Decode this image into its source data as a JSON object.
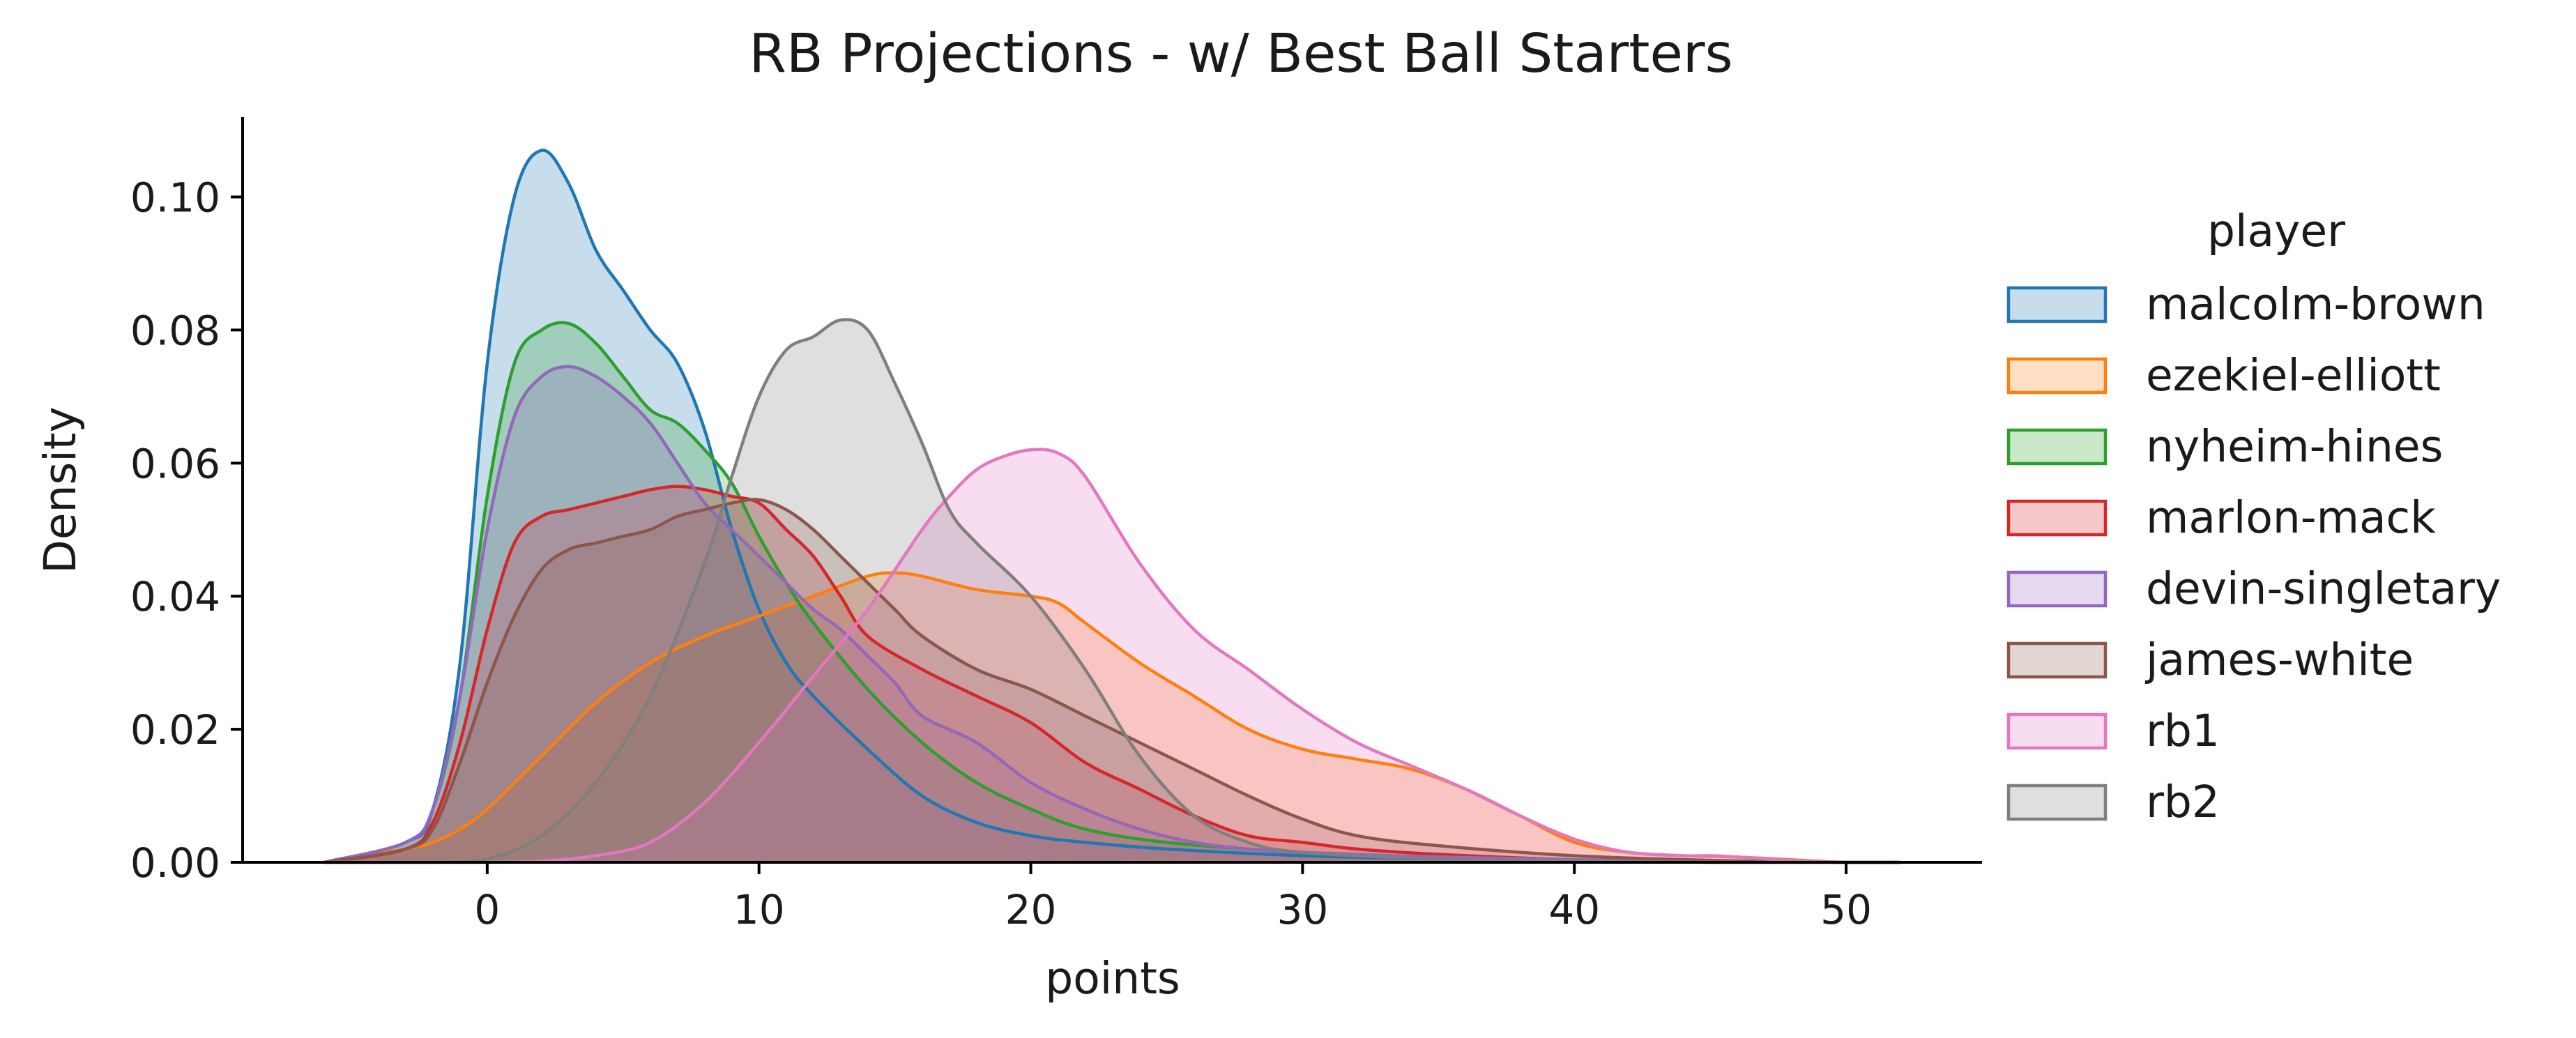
{
  "chart_data": {
    "type": "area",
    "title": "RB Projections - w/ Best Ball Starters",
    "xlabel": "points",
    "ylabel": "Density",
    "xlim": [
      -9,
      55
    ],
    "ylim": [
      0,
      0.112
    ],
    "xticks": [
      0,
      10,
      20,
      30,
      40,
      50
    ],
    "yticks": [
      0,
      0.02,
      0.04,
      0.06,
      0.08,
      0.1
    ],
    "xtick_labels": [
      "0",
      "10",
      "20",
      "30",
      "40",
      "50"
    ],
    "ytick_labels": [
      "0.00",
      "0.02",
      "0.04",
      "0.06",
      "0.08",
      "0.10"
    ],
    "grid": false,
    "legend": {
      "title": "player",
      "placement": "right-outside"
    },
    "series": [
      {
        "name": "malcolm-brown",
        "color": "#1f77b4",
        "x": [
          -6,
          -3,
          -2,
          -1,
          0,
          1,
          2,
          3,
          4,
          5,
          6,
          7,
          8,
          9,
          10,
          11,
          12,
          14,
          16,
          18,
          20,
          22,
          25,
          30,
          35,
          40,
          45,
          50,
          52
        ],
        "y": [
          0,
          0.003,
          0.008,
          0.03,
          0.075,
          0.1,
          0.107,
          0.102,
          0.092,
          0.086,
          0.08,
          0.075,
          0.065,
          0.05,
          0.038,
          0.03,
          0.025,
          0.017,
          0.01,
          0.006,
          0.004,
          0.003,
          0.002,
          0.001,
          0.0005,
          0.0003,
          0.0002,
          0,
          0
        ]
      },
      {
        "name": "ezekiel-elliott",
        "color": "#ff7f0e",
        "x": [
          -6,
          -3,
          -2,
          -1,
          0,
          2,
          4,
          6,
          8,
          10,
          12,
          14,
          15,
          16,
          18,
          20,
          21,
          22,
          24,
          26,
          28,
          30,
          32,
          34,
          36,
          38,
          40,
          42,
          44,
          46,
          50,
          52
        ],
        "y": [
          0,
          0.002,
          0.003,
          0.005,
          0.008,
          0.016,
          0.024,
          0.03,
          0.034,
          0.037,
          0.04,
          0.043,
          0.0435,
          0.043,
          0.041,
          0.04,
          0.039,
          0.036,
          0.03,
          0.025,
          0.02,
          0.017,
          0.0155,
          0.014,
          0.011,
          0.007,
          0.003,
          0.0015,
          0.001,
          0.0008,
          0,
          0
        ]
      },
      {
        "name": "nyheim-hines",
        "color": "#2ca02c",
        "x": [
          -6,
          -3,
          -2,
          -1,
          0,
          1,
          2,
          3,
          4,
          5,
          6,
          7,
          8,
          9,
          10,
          11,
          12,
          14,
          16,
          18,
          20,
          22,
          25,
          30,
          35,
          40,
          45,
          50,
          52
        ],
        "y": [
          0,
          0.003,
          0.008,
          0.025,
          0.055,
          0.075,
          0.08,
          0.081,
          0.078,
          0.073,
          0.068,
          0.066,
          0.062,
          0.057,
          0.049,
          0.042,
          0.036,
          0.026,
          0.018,
          0.012,
          0.008,
          0.005,
          0.003,
          0.0015,
          0.0007,
          0.0003,
          0.0002,
          0,
          0
        ]
      },
      {
        "name": "marlon-mack",
        "color": "#d62728",
        "x": [
          -6,
          -3,
          -2,
          -1,
          0,
          1,
          2,
          3,
          4,
          5,
          6,
          7,
          8,
          9,
          10,
          11,
          12,
          13,
          14,
          16,
          18,
          20,
          22,
          24,
          26,
          28,
          30,
          32,
          35,
          40,
          45,
          50,
          52
        ],
        "y": [
          0,
          0.002,
          0.006,
          0.018,
          0.035,
          0.048,
          0.052,
          0.053,
          0.054,
          0.055,
          0.056,
          0.0565,
          0.056,
          0.055,
          0.054,
          0.05,
          0.046,
          0.04,
          0.034,
          0.029,
          0.025,
          0.021,
          0.015,
          0.011,
          0.007,
          0.004,
          0.003,
          0.002,
          0.0012,
          0.0004,
          0.0002,
          0,
          0
        ]
      },
      {
        "name": "devin-singletary",
        "color": "#9467bd",
        "x": [
          -6,
          -3,
          -2,
          -1,
          0,
          1,
          2,
          3,
          4,
          5,
          6,
          7,
          8,
          9,
          10,
          11,
          12,
          13,
          14,
          15,
          16,
          18,
          20,
          22,
          24,
          26,
          28,
          30,
          35,
          40,
          45,
          50,
          52
        ],
        "y": [
          0,
          0.003,
          0.008,
          0.025,
          0.05,
          0.067,
          0.073,
          0.0745,
          0.073,
          0.07,
          0.066,
          0.06,
          0.054,
          0.05,
          0.046,
          0.042,
          0.038,
          0.035,
          0.031,
          0.027,
          0.022,
          0.018,
          0.012,
          0.008,
          0.005,
          0.003,
          0.002,
          0.0015,
          0.0008,
          0.0004,
          0.0002,
          0,
          0
        ]
      },
      {
        "name": "james-white",
        "color": "#8c564b",
        "x": [
          -6,
          -3,
          -2,
          -1,
          0,
          1,
          2,
          3,
          4,
          5,
          6,
          7,
          8,
          9,
          10,
          11,
          12,
          13,
          14,
          15,
          16,
          18,
          20,
          22,
          24,
          26,
          28,
          30,
          32,
          35,
          40,
          45,
          50,
          52
        ],
        "y": [
          0,
          0.002,
          0.005,
          0.015,
          0.027,
          0.037,
          0.044,
          0.047,
          0.048,
          0.049,
          0.05,
          0.052,
          0.053,
          0.054,
          0.0545,
          0.053,
          0.05,
          0.046,
          0.042,
          0.038,
          0.034,
          0.029,
          0.026,
          0.022,
          0.018,
          0.014,
          0.01,
          0.0065,
          0.004,
          0.0025,
          0.001,
          0.0003,
          0,
          0
        ]
      },
      {
        "name": "rb1",
        "color": "#e377c2",
        "x": [
          -6,
          0,
          2,
          4,
          6,
          8,
          10,
          12,
          14,
          16,
          17,
          18,
          19,
          20,
          21,
          22,
          24,
          26,
          28,
          30,
          32,
          34,
          36,
          38,
          40,
          42,
          44,
          45,
          46,
          48,
          50,
          52
        ],
        "y": [
          0,
          0,
          0.0002,
          0.001,
          0.003,
          0.009,
          0.018,
          0.028,
          0.038,
          0.05,
          0.055,
          0.059,
          0.061,
          0.062,
          0.0615,
          0.058,
          0.045,
          0.035,
          0.029,
          0.023,
          0.018,
          0.0145,
          0.011,
          0.007,
          0.0035,
          0.0015,
          0.001,
          0.001,
          0.0008,
          0.0003,
          0,
          0
        ]
      },
      {
        "name": "rb2",
        "color": "#7f7f7f",
        "x": [
          -6,
          -2,
          0,
          2,
          4,
          6,
          8,
          9,
          10,
          11,
          12,
          13,
          14,
          15,
          16,
          17,
          18,
          20,
          22,
          24,
          26,
          28,
          30,
          35,
          40,
          45,
          50,
          52
        ],
        "y": [
          0,
          0,
          0.0005,
          0.004,
          0.012,
          0.025,
          0.045,
          0.058,
          0.07,
          0.077,
          0.079,
          0.0815,
          0.08,
          0.072,
          0.063,
          0.053,
          0.048,
          0.04,
          0.029,
          0.016,
          0.007,
          0.003,
          0.0015,
          0.0005,
          0.0002,
          0,
          0,
          0
        ]
      }
    ]
  }
}
